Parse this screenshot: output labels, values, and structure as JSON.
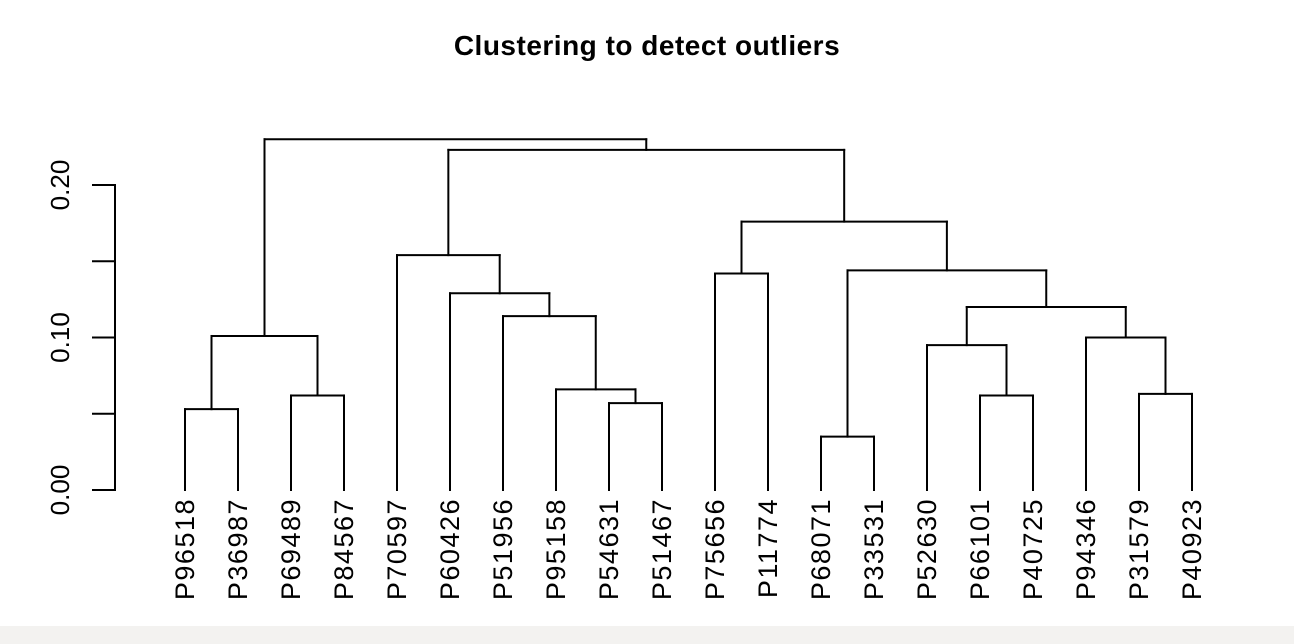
{
  "page": {
    "background_color": "#ffffff",
    "bottom_bar_color": "#f3f2f0"
  },
  "chart_data": {
    "type": "dendrogram",
    "title": "Clustering to detect outliers",
    "orientation": "vertical",
    "line_color": "#000000",
    "text_color": "#000000",
    "ylim": [
      0,
      0.23
    ],
    "yticks": [
      0,
      0.05,
      0.1,
      0.15,
      0.2
    ],
    "ytick_labels": [
      {
        "value": 0,
        "label": "0.00"
      },
      {
        "value": 0.1,
        "label": "0.10"
      },
      {
        "value": 0.2,
        "label": "0.20"
      }
    ],
    "grid": false,
    "legend": false,
    "leaves": [
      "P96518",
      "P36987",
      "P69489",
      "P84567",
      "P70597",
      "P60426",
      "P51956",
      "P95158",
      "P54631",
      "P51467",
      "P75656",
      "P11774",
      "P68071",
      "P33531",
      "P52630",
      "P66101",
      "P40725",
      "P94346",
      "P31579",
      "P40923"
    ],
    "tree": {
      "height": 0.23,
      "children": [
        {
          "height": 0.101,
          "children": [
            {
              "height": 0.053,
              "children": [
                {
                  "leaf": "P96518"
                },
                {
                  "leaf": "P36987"
                }
              ]
            },
            {
              "height": 0.062,
              "children": [
                {
                  "leaf": "P69489"
                },
                {
                  "leaf": "P84567"
                }
              ]
            }
          ]
        },
        {
          "height": 0.223,
          "children": [
            {
              "height": 0.154,
              "children": [
                {
                  "leaf": "P70597"
                },
                {
                  "height": 0.129,
                  "children": [
                    {
                      "leaf": "P60426"
                    },
                    {
                      "height": 0.114,
                      "children": [
                        {
                          "leaf": "P51956"
                        },
                        {
                          "height": 0.066,
                          "children": [
                            {
                              "leaf": "P95158"
                            },
                            {
                              "height": 0.057,
                              "children": [
                                {
                                  "leaf": "P54631"
                                },
                                {
                                  "leaf": "P51467"
                                }
                              ]
                            }
                          ]
                        }
                      ]
                    }
                  ]
                }
              ]
            },
            {
              "height": 0.176,
              "children": [
                {
                  "height": 0.142,
                  "children": [
                    {
                      "leaf": "P75656"
                    },
                    {
                      "leaf": "P11774"
                    }
                  ]
                },
                {
                  "height": 0.144,
                  "children": [
                    {
                      "height": 0.035,
                      "children": [
                        {
                          "leaf": "P68071"
                        },
                        {
                          "leaf": "P33531"
                        }
                      ]
                    },
                    {
                      "height": 0.12,
                      "children": [
                        {
                          "height": 0.095,
                          "children": [
                            {
                              "leaf": "P52630"
                            },
                            {
                              "height": 0.062,
                              "children": [
                                {
                                  "leaf": "P66101"
                                },
                                {
                                  "leaf": "P40725"
                                }
                              ]
                            }
                          ]
                        },
                        {
                          "height": 0.1,
                          "children": [
                            {
                              "leaf": "P94346"
                            },
                            {
                              "height": 0.063,
                              "children": [
                                {
                                  "leaf": "P31579"
                                },
                                {
                                  "leaf": "P40923"
                                }
                              ]
                            }
                          ]
                        }
                      ]
                    }
                  ]
                }
              ]
            }
          ]
        }
      ]
    }
  }
}
